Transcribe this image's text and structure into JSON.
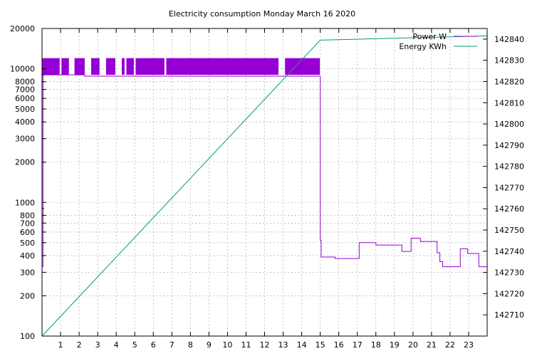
{
  "chart_data": {
    "type": "line",
    "title": "Electricity consumption Monday March 16 2020",
    "legend_position": "top-right",
    "grid": true,
    "x": {
      "range": [
        0,
        24
      ],
      "ticks": [
        1,
        2,
        3,
        4,
        5,
        6,
        7,
        8,
        9,
        10,
        11,
        12,
        13,
        14,
        15,
        16,
        17,
        18,
        19,
        20,
        21,
        22,
        23
      ],
      "tick_labels": [
        "1",
        "2",
        "3",
        "4",
        "5",
        "6",
        "7",
        "8",
        "9",
        "10",
        "11",
        "12",
        "13",
        "14",
        "15",
        "16",
        "17",
        "18",
        "19",
        "20",
        "21",
        "22",
        "23"
      ]
    },
    "y_left": {
      "scale": "log",
      "range": [
        100,
        20000
      ],
      "ticks": [
        100,
        200,
        300,
        400,
        500,
        600,
        700,
        800,
        1000,
        2000,
        3000,
        4000,
        5000,
        6000,
        7000,
        8000,
        10000,
        20000
      ],
      "tick_labels": [
        "100",
        "200",
        "300",
        "400",
        "500",
        "600",
        "700",
        "800",
        "1000",
        "2000",
        "3000",
        "4000",
        "5000",
        "6000",
        "7000",
        "8000",
        "10000",
        "20000"
      ]
    },
    "y_right": {
      "scale": "linear",
      "range": [
        142700,
        142845
      ],
      "ticks": [
        142710,
        142720,
        142730,
        142740,
        142750,
        142760,
        142770,
        142780,
        142790,
        142800,
        142810,
        142820,
        142830,
        142840
      ],
      "tick_labels": [
        "142710",
        "142720",
        "142730",
        "142740",
        "142750",
        "142760",
        "142770",
        "142780",
        "142790",
        "142800",
        "142810",
        "142820",
        "142830",
        "142840"
      ]
    },
    "series": [
      {
        "name": "Power W",
        "color": "#9400d3",
        "axis": "left",
        "dense_band": {
          "low": 9000,
          "high": 12000,
          "segments": [
            [
              0.02,
              0.95
            ],
            [
              1.05,
              1.45
            ],
            [
              1.75,
              2.3
            ],
            [
              2.65,
              3.1
            ],
            [
              3.45,
              3.95
            ],
            [
              4.3,
              4.45
            ],
            [
              4.55,
              4.95
            ],
            [
              5.05,
              6.6
            ],
            [
              6.7,
              12.75
            ],
            [
              13.1,
              14.98
            ]
          ]
        },
        "steps": [
          [
            0.0,
            330
          ],
          [
            0.05,
            9000
          ],
          [
            0.95,
            9000
          ],
          [
            1.45,
            9000
          ],
          [
            2.3,
            8800
          ],
          [
            3.1,
            8800
          ],
          [
            3.95,
            8800
          ],
          [
            4.95,
            8800
          ],
          [
            12.75,
            8800
          ],
          [
            13.05,
            8800
          ],
          [
            14.98,
            8800
          ],
          [
            15.0,
            520
          ],
          [
            15.05,
            390
          ],
          [
            15.8,
            380
          ],
          [
            17.1,
            500
          ],
          [
            18.0,
            480
          ],
          [
            19.4,
            430
          ],
          [
            19.9,
            540
          ],
          [
            20.4,
            510
          ],
          [
            21.3,
            420
          ],
          [
            21.45,
            360
          ],
          [
            21.6,
            330
          ],
          [
            22.55,
            450
          ],
          [
            22.95,
            415
          ],
          [
            23.55,
            330
          ],
          [
            24.0,
            330
          ]
        ]
      },
      {
        "name": "Energy KWh",
        "color": "#009e73",
        "axis": "right",
        "points": [
          [
            0.0,
            142700
          ],
          [
            15.0,
            142839.5
          ],
          [
            24.0,
            142841.5
          ]
        ]
      }
    ]
  }
}
